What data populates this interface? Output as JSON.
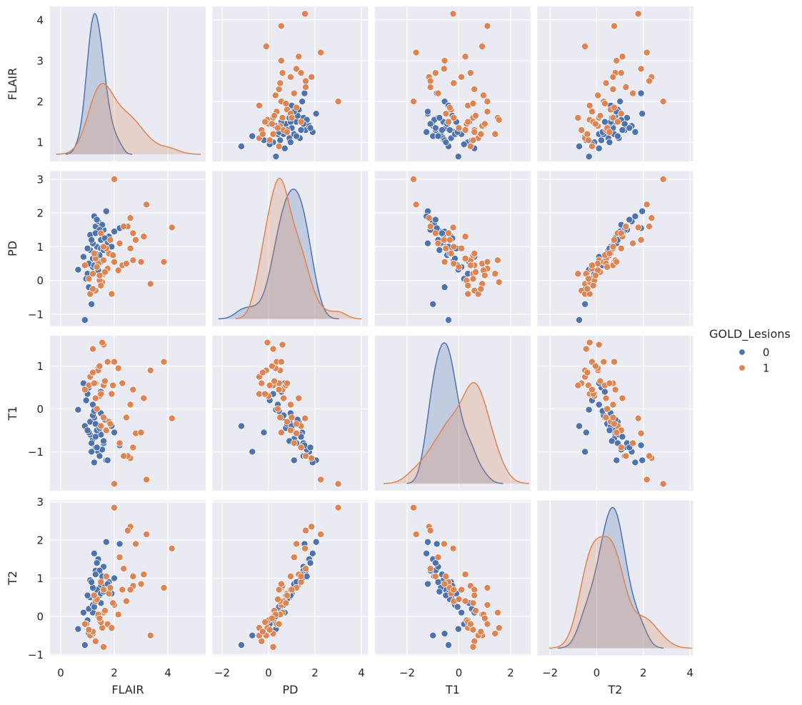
{
  "chart_data": {
    "type": "scatter-matrix",
    "diagonal": "kde",
    "variables": [
      "FLAIR",
      "PD",
      "T1",
      "T2"
    ],
    "hue": "GOLD_Lesions",
    "legend": {
      "title": "GOLD_Lesions",
      "placement": "right",
      "entries": [
        "0",
        "1"
      ]
    },
    "colors": {
      "0": "#4c72b0",
      "1": "#dd8452",
      "background": "#eaeaf2",
      "grid": "#ffffff"
    },
    "grid": true,
    "axis_range": {
      "FLAIR": {
        "x": [
          -0.4,
          5.41
        ],
        "y": [
          0.53,
          4.33
        ]
      },
      "PD": {
        "x": [
          -2.415,
          4.29
        ],
        "y": [
          -1.35,
          3.24
        ]
      },
      "T1": {
        "x": [
          -3.24,
          2.77
        ],
        "y": [
          -1.91,
          1.71
        ]
      },
      "T2": {
        "x": [
          -2.54,
          4.13
        ],
        "y": [
          -1.02,
          3.04
        ]
      }
    },
    "x_ticks": {
      "FLAIR": [
        {
          "v": 0,
          "label": "0"
        },
        {
          "v": 2,
          "label": "2"
        },
        {
          "v": 4,
          "label": "4"
        }
      ],
      "PD": [
        {
          "v": -2,
          "label": "−2"
        },
        {
          "v": 0,
          "label": "0"
        },
        {
          "v": 2,
          "label": "2"
        },
        {
          "v": 4,
          "label": "4"
        }
      ],
      "T1": [
        {
          "v": -2,
          "label": "−2"
        },
        {
          "v": 0,
          "label": "0"
        },
        {
          "v": 2,
          "label": "2"
        }
      ],
      "T2": [
        {
          "v": -2,
          "label": "−2"
        },
        {
          "v": 0,
          "label": "0"
        },
        {
          "v": 2,
          "label": "2"
        },
        {
          "v": 4,
          "label": "4"
        }
      ]
    },
    "y_ticks": {
      "FLAIR": [
        {
          "v": 1,
          "label": "1"
        },
        {
          "v": 2,
          "label": "2"
        },
        {
          "v": 3,
          "label": "3"
        },
        {
          "v": 4,
          "label": "4"
        }
      ],
      "PD": [
        {
          "v": -1,
          "label": "−1"
        },
        {
          "v": 0,
          "label": "0"
        },
        {
          "v": 1,
          "label": "1"
        },
        {
          "v": 2,
          "label": "2"
        },
        {
          "v": 3,
          "label": "3"
        }
      ],
      "T1": [
        {
          "v": -1,
          "label": "−1"
        },
        {
          "v": 0,
          "label": "0"
        },
        {
          "v": 1,
          "label": "1"
        }
      ],
      "T2": [
        {
          "v": -1,
          "label": "−1"
        },
        {
          "v": 0,
          "label": "0"
        },
        {
          "v": 1,
          "label": "1"
        },
        {
          "v": 2,
          "label": "2"
        },
        {
          "v": 3,
          "label": "3"
        }
      ]
    },
    "groups": [
      {
        "name": "0",
        "points": [
          [
            1.3,
            1.6,
            -0.9,
            1.2
          ],
          [
            1.1,
            0.9,
            -0.3,
            0.5
          ],
          [
            1.5,
            1.2,
            -0.6,
            0.8
          ],
          [
            1.2,
            0.4,
            0.1,
            0.1
          ],
          [
            0.9,
            -1.17,
            -0.4,
            -0.75
          ],
          [
            0.65,
            0.32,
            -0.02,
            -0.33
          ],
          [
            1.4,
            1.75,
            -1.0,
            1.5
          ],
          [
            1.7,
            2.05,
            -1.2,
            1.95
          ],
          [
            1.25,
            0.6,
            -0.2,
            0.35
          ],
          [
            1.0,
            0.2,
            0.35,
            -0.1
          ],
          [
            1.6,
            1.5,
            -0.8,
            1.3
          ],
          [
            1.35,
            1.0,
            -0.5,
            0.7
          ],
          [
            1.15,
            -0.7,
            -1.0,
            -0.5
          ],
          [
            1.8,
            1.3,
            -0.3,
            0.9
          ],
          [
            2.0,
            1.45,
            -0.55,
            1.0
          ],
          [
            1.45,
            0.75,
            -0.45,
            0.55
          ],
          [
            1.05,
            0.5,
            0.5,
            0.2
          ],
          [
            1.25,
            1.9,
            -1.25,
            1.65
          ],
          [
            1.5,
            0.95,
            -0.1,
            0.6
          ],
          [
            1.2,
            1.1,
            -0.7,
            0.75
          ],
          [
            0.95,
            0.05,
            0.2,
            -0.2
          ],
          [
            1.55,
            1.65,
            -0.95,
            1.05
          ],
          [
            1.3,
            0.8,
            -0.35,
            0.45
          ],
          [
            2.2,
            1.55,
            -0.85,
            1.9
          ],
          [
            1.1,
            1.35,
            -0.6,
            0.95
          ],
          [
            1.4,
            0.3,
            0.95,
            0.0
          ],
          [
            1.65,
            1.25,
            -0.25,
            0.8
          ],
          [
            1.2,
            0.65,
            -0.15,
            0.3
          ],
          [
            0.85,
            0.7,
            0.6,
            0.1
          ],
          [
            1.75,
            1.1,
            -1.2,
            0.85
          ],
          [
            1.35,
            1.8,
            -0.9,
            1.4
          ],
          [
            1.05,
            -0.2,
            -0.55,
            -0.45
          ],
          [
            1.6,
            0.9,
            -0.75,
            0.65
          ],
          [
            1.45,
            1.5,
            -1.1,
            1.2
          ],
          [
            1.25,
            0.45,
            -0.05,
            0.25
          ],
          [
            1.9,
            1.0,
            -0.4,
            0.6
          ],
          [
            1.15,
            1.2,
            -0.8,
            0.9
          ],
          [
            1.5,
            0.55,
            0.4,
            0.35
          ],
          [
            1.3,
            1.4,
            -0.65,
            1.1
          ],
          [
            1.0,
            0.95,
            -0.5,
            0.55
          ]
        ]
      },
      {
        "name": "1",
        "points": [
          [
            4.15,
            1.57,
            -0.22,
            1.78
          ],
          [
            3.85,
            0.55,
            1.1,
            0.75
          ],
          [
            2.0,
            3.0,
            -1.75,
            2.85
          ],
          [
            3.2,
            2.25,
            -1.65,
            2.15
          ],
          [
            2.6,
            1.85,
            -1.15,
            2.35
          ],
          [
            2.5,
            1.6,
            -1.1,
            2.25
          ],
          [
            3.35,
            -0.1,
            0.9,
            -0.5
          ],
          [
            3.1,
            1.3,
            0.25,
            1.1
          ],
          [
            2.8,
            1.2,
            -0.57,
            1.9
          ],
          [
            2.7,
            0.6,
            0.45,
            0.8
          ],
          [
            1.6,
            0.6,
            1.5,
            0.1
          ],
          [
            1.55,
            -0.05,
            1.55,
            -0.3
          ],
          [
            1.2,
            0.2,
            1.4,
            -0.45
          ],
          [
            1.75,
            0.35,
            1.1,
            -0.2
          ],
          [
            1.4,
            0.5,
            0.9,
            0.05
          ],
          [
            1.3,
            -0.3,
            0.6,
            -0.65
          ],
          [
            1.6,
            0.2,
            0.55,
            -0.8
          ],
          [
            1.1,
            -0.4,
            0.75,
            -0.5
          ],
          [
            2.0,
            0.55,
            1.1,
            0.3
          ],
          [
            1.8,
            0.8,
            -0.3,
            0.6
          ],
          [
            2.2,
            1.1,
            -0.8,
            1.55
          ],
          [
            1.5,
            1.4,
            -0.4,
            0.9
          ],
          [
            1.9,
            -0.4,
            0.35,
            -0.3
          ],
          [
            1.45,
            0.0,
            0.3,
            -0.1
          ],
          [
            2.3,
            0.45,
            0.6,
            0.7
          ],
          [
            1.7,
            0.95,
            -0.5,
            1.05
          ],
          [
            1.3,
            0.65,
            0.25,
            0.4
          ],
          [
            2.6,
            0.95,
            0.1,
            0.7
          ],
          [
            1.2,
            -0.25,
            0.85,
            -0.4
          ],
          [
            1.65,
            0.25,
            0.65,
            0.15
          ],
          [
            2.45,
            0.5,
            -0.2,
            0.4
          ],
          [
            1.05,
            0.05,
            0.55,
            -0.35
          ],
          [
            1.85,
            1.2,
            -0.35,
            0.75
          ],
          [
            2.15,
            0.3,
            0.95,
            0.05
          ],
          [
            1.35,
            0.4,
            0.0,
            0.45
          ],
          [
            3.0,
            0.55,
            -0.55,
            0.85
          ],
          [
            1.5,
            -0.15,
            0.35,
            -0.15
          ],
          [
            1.95,
            0.75,
            0.55,
            0.35
          ],
          [
            2.7,
            1.4,
            -0.9,
            1.05
          ],
          [
            1.25,
            0.8,
            0.6,
            0.55
          ],
          [
            0.9,
            0.45,
            0.45,
            -0.2
          ],
          [
            1.6,
            1.0,
            -0.2,
            0.7
          ],
          [
            2.35,
            1.6,
            -1.1,
            1.25
          ],
          [
            1.45,
            0.15,
            1.0,
            -0.05
          ]
        ]
      }
    ]
  }
}
